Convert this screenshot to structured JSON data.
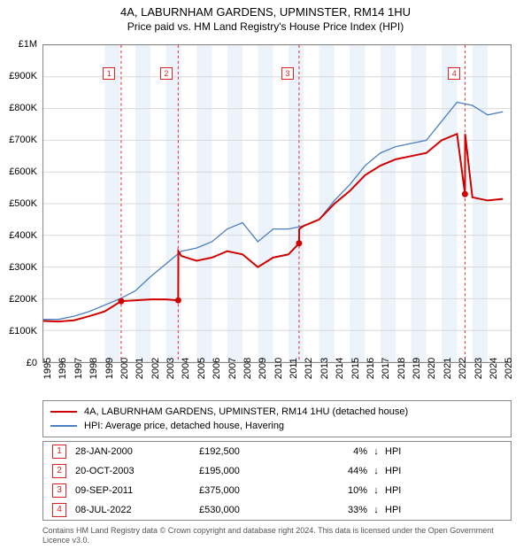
{
  "title": "4A, LABURNHAM GARDENS, UPMINSTER, RM14 1HU",
  "subtitle": "Price paid vs. HM Land Registry's House Price Index (HPI)",
  "chart": {
    "type": "line",
    "xlim": [
      1995,
      2025.5
    ],
    "ylim": [
      0,
      1000000
    ],
    "ytick_step": 100000,
    "yticks": [
      "£0",
      "£100K",
      "£200K",
      "£300K",
      "£400K",
      "£500K",
      "£600K",
      "£700K",
      "£800K",
      "£900K",
      "£1M"
    ],
    "xticks": [
      1995,
      1996,
      1997,
      1998,
      1999,
      2000,
      2001,
      2002,
      2003,
      2004,
      2005,
      2006,
      2007,
      2008,
      2009,
      2010,
      2011,
      2012,
      2013,
      2014,
      2015,
      2016,
      2017,
      2018,
      2019,
      2020,
      2021,
      2022,
      2023,
      2024,
      2025
    ],
    "grid_color": "#d8d8d8",
    "background": "#ffffff",
    "band_color": "#edf3fa",
    "band_years": [
      [
        1999,
        2000
      ],
      [
        2001,
        2002
      ],
      [
        2003,
        2004
      ],
      [
        2005,
        2006
      ],
      [
        2007,
        2008
      ],
      [
        2009,
        2010
      ],
      [
        2011,
        2012
      ],
      [
        2013,
        2014
      ],
      [
        2015,
        2016
      ],
      [
        2017,
        2018
      ],
      [
        2019,
        2020
      ],
      [
        2021,
        2022
      ],
      [
        2023,
        2024
      ]
    ],
    "vlines_color": "#d22",
    "vlines": [
      2000.08,
      2003.8,
      2011.69,
      2022.52
    ],
    "marker_labels": [
      "1",
      "2",
      "3",
      "4"
    ],
    "series": [
      {
        "name": "4A, LABURNHAM GARDENS, UPMINSTER, RM14 1HU (detached house)",
        "color": "#d00000",
        "width": 2,
        "data": [
          [
            1995,
            130000
          ],
          [
            1996,
            128000
          ],
          [
            1997,
            132000
          ],
          [
            1998,
            145000
          ],
          [
            1999,
            160000
          ],
          [
            2000.08,
            192500
          ],
          [
            2001,
            195000
          ],
          [
            2002,
            198000
          ],
          [
            2003,
            198000
          ],
          [
            2003.8,
            195000
          ],
          [
            2003.81,
            350000
          ],
          [
            2004,
            335000
          ],
          [
            2005,
            320000
          ],
          [
            2006,
            330000
          ],
          [
            2007,
            350000
          ],
          [
            2008,
            340000
          ],
          [
            2009,
            300000
          ],
          [
            2010,
            330000
          ],
          [
            2011,
            340000
          ],
          [
            2011.69,
            375000
          ],
          [
            2011.7,
            420000
          ],
          [
            2012,
            430000
          ],
          [
            2013,
            450000
          ],
          [
            2014,
            500000
          ],
          [
            2015,
            540000
          ],
          [
            2016,
            590000
          ],
          [
            2017,
            620000
          ],
          [
            2018,
            640000
          ],
          [
            2019,
            650000
          ],
          [
            2020,
            660000
          ],
          [
            2021,
            700000
          ],
          [
            2022,
            720000
          ],
          [
            2022.52,
            530000
          ],
          [
            2022.53,
            720000
          ],
          [
            2023,
            520000
          ],
          [
            2024,
            510000
          ],
          [
            2025,
            515000
          ]
        ],
        "markers": [
          [
            2000.08,
            192500
          ],
          [
            2003.8,
            195000
          ],
          [
            2011.69,
            375000
          ],
          [
            2022.52,
            530000
          ]
        ]
      },
      {
        "name": "HPI: Average price, detached house, Havering",
        "color": "#4a7fc4",
        "width": 1.3,
        "data": [
          [
            1995,
            135000
          ],
          [
            1996,
            135000
          ],
          [
            1997,
            145000
          ],
          [
            1998,
            160000
          ],
          [
            1999,
            180000
          ],
          [
            2000,
            200000
          ],
          [
            2001,
            225000
          ],
          [
            2002,
            270000
          ],
          [
            2003,
            310000
          ],
          [
            2004,
            350000
          ],
          [
            2005,
            360000
          ],
          [
            2006,
            380000
          ],
          [
            2007,
            420000
          ],
          [
            2008,
            440000
          ],
          [
            2009,
            380000
          ],
          [
            2010,
            420000
          ],
          [
            2011,
            420000
          ],
          [
            2012,
            430000
          ],
          [
            2013,
            450000
          ],
          [
            2014,
            510000
          ],
          [
            2015,
            560000
          ],
          [
            2016,
            620000
          ],
          [
            2017,
            660000
          ],
          [
            2018,
            680000
          ],
          [
            2019,
            690000
          ],
          [
            2020,
            700000
          ],
          [
            2021,
            760000
          ],
          [
            2022,
            820000
          ],
          [
            2023,
            810000
          ],
          [
            2024,
            780000
          ],
          [
            2025,
            790000
          ]
        ]
      }
    ]
  },
  "legend": [
    {
      "color": "#d00000",
      "label": "4A, LABURNHAM GARDENS, UPMINSTER, RM14 1HU (detached house)"
    },
    {
      "color": "#4a7fc4",
      "label": "HPI: Average price, detached house, Havering"
    }
  ],
  "transactions": [
    {
      "n": "1",
      "date": "28-JAN-2000",
      "price": "£192,500",
      "pct": "4%",
      "arrow": "↓",
      "hpi": "HPI"
    },
    {
      "n": "2",
      "date": "20-OCT-2003",
      "price": "£195,000",
      "pct": "44%",
      "arrow": "↓",
      "hpi": "HPI"
    },
    {
      "n": "3",
      "date": "09-SEP-2011",
      "price": "£375,000",
      "pct": "10%",
      "arrow": "↓",
      "hpi": "HPI"
    },
    {
      "n": "4",
      "date": "08-JUL-2022",
      "price": "£530,000",
      "pct": "33%",
      "arrow": "↓",
      "hpi": "HPI"
    }
  ],
  "footer": "Contains HM Land Registry data © Crown copyright and database right 2024. This data is licensed under the Open Government Licence v3.0."
}
